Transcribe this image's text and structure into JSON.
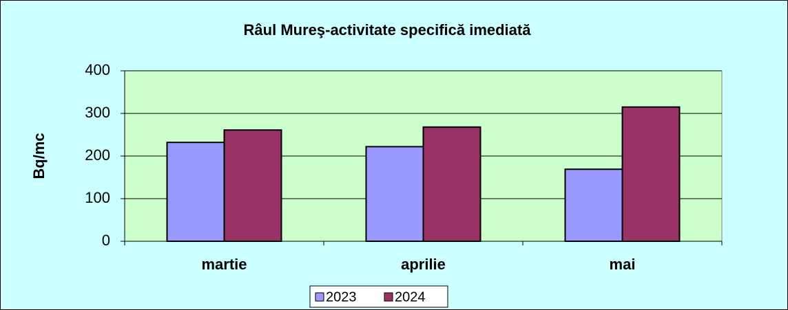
{
  "chart_data": {
    "type": "bar",
    "title": "Râul Mureş-activitate specifică imediată",
    "y_label": "Bq/mc",
    "categories": [
      "martie",
      "aprilie",
      "mai"
    ],
    "series": [
      {
        "name": "2023",
        "color": "#9999ff",
        "values": [
          232,
          222,
          169
        ]
      },
      {
        "name": "2024",
        "color": "#993366",
        "values": [
          261,
          268,
          315
        ]
      }
    ],
    "ylim": [
      0,
      400
    ],
    "yticks": [
      0,
      100,
      200,
      300,
      400
    ],
    "grid": true,
    "legend": "bottom"
  }
}
